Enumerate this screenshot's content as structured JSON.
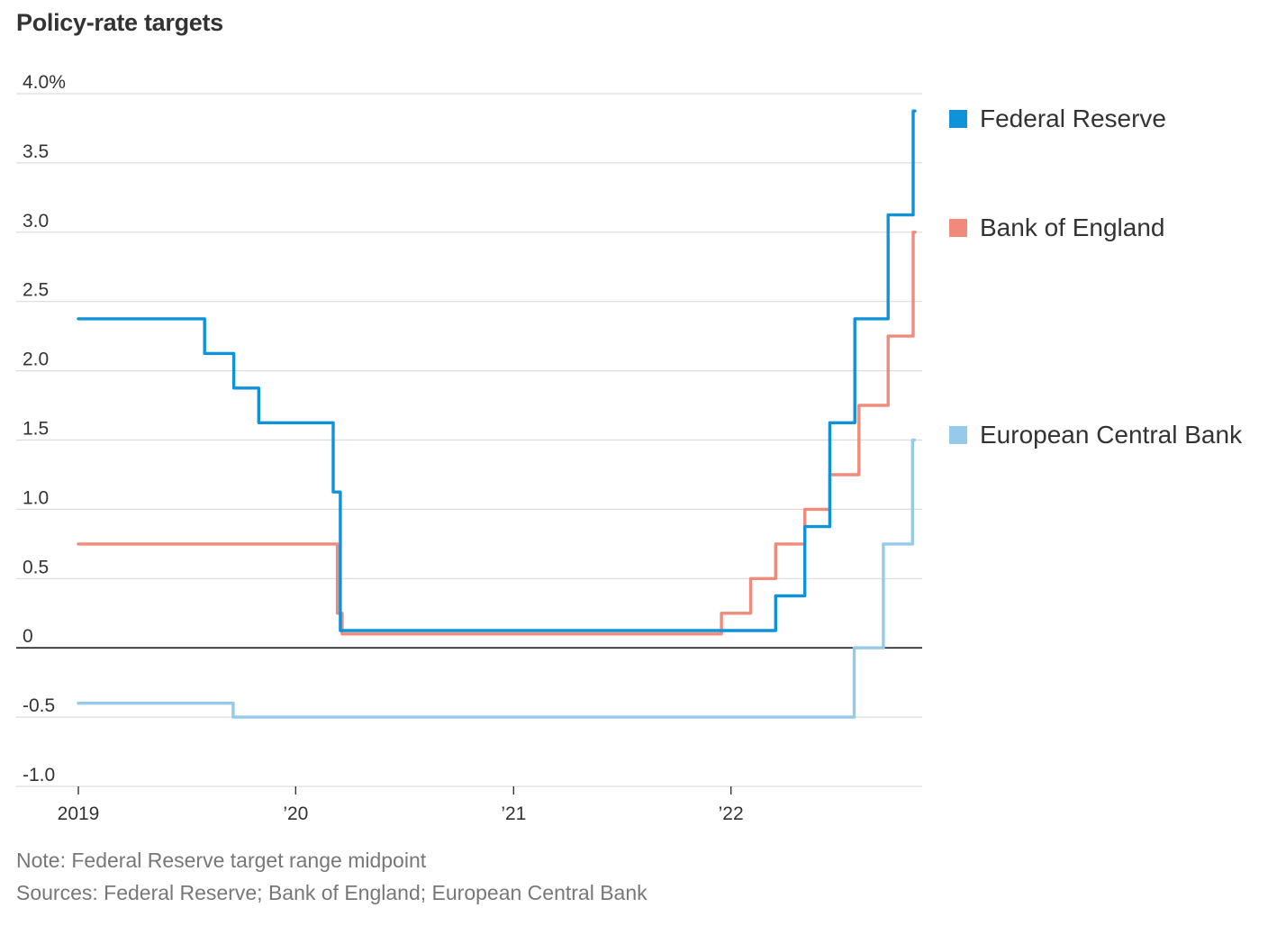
{
  "chart_data": {
    "type": "line",
    "title": "Policy-rate targets",
    "xlabel": "",
    "ylabel": "",
    "ylim": [
      -1.0,
      4.0
    ],
    "yticks": [
      {
        "value": 4.0,
        "label": "4.0%"
      },
      {
        "value": 3.5,
        "label": "3.5"
      },
      {
        "value": 3.0,
        "label": "3.0"
      },
      {
        "value": 2.5,
        "label": "2.5"
      },
      {
        "value": 2.0,
        "label": "2.0"
      },
      {
        "value": 1.5,
        "label": "1.5"
      },
      {
        "value": 1.0,
        "label": "1.0"
      },
      {
        "value": 0.5,
        "label": "0.5"
      },
      {
        "value": 0,
        "label": "0"
      },
      {
        "value": -0.5,
        "label": "-0.5"
      },
      {
        "value": -1.0,
        "label": "-1.0"
      }
    ],
    "xlim": [
      "2019-01-01",
      "2022-11-20"
    ],
    "xticks": [
      {
        "value": "2019-01-01",
        "label": "2019"
      },
      {
        "value": "2020-01-01",
        "label": "’20"
      },
      {
        "value": "2021-01-01",
        "label": "’21"
      },
      {
        "value": "2022-01-01",
        "label": "’22"
      }
    ],
    "grid": true,
    "legend_position": "right",
    "step": true,
    "series": [
      {
        "name": "Federal Reserve",
        "color": "#0f92d8",
        "points": [
          [
            "2019-01-01",
            2.375
          ],
          [
            "2019-08-01",
            2.125
          ],
          [
            "2019-09-19",
            1.875
          ],
          [
            "2019-10-31",
            1.625
          ],
          [
            "2020-03-04",
            1.125
          ],
          [
            "2020-03-16",
            0.125
          ],
          [
            "2022-03-17",
            0.375
          ],
          [
            "2022-05-05",
            0.875
          ],
          [
            "2022-06-16",
            1.625
          ],
          [
            "2022-07-28",
            2.375
          ],
          [
            "2022-09-22",
            3.125
          ],
          [
            "2022-11-03",
            3.875
          ]
        ]
      },
      {
        "name": "Bank of England",
        "color": "#f08a7b",
        "points": [
          [
            "2019-01-01",
            0.75
          ],
          [
            "2020-03-11",
            0.25
          ],
          [
            "2020-03-19",
            0.1
          ],
          [
            "2021-12-16",
            0.25
          ],
          [
            "2022-02-03",
            0.5
          ],
          [
            "2022-03-17",
            0.75
          ],
          [
            "2022-05-05",
            1.0
          ],
          [
            "2022-06-16",
            1.25
          ],
          [
            "2022-08-04",
            1.75
          ],
          [
            "2022-09-22",
            2.25
          ],
          [
            "2022-11-03",
            3.0
          ]
        ]
      },
      {
        "name": "European Central Bank",
        "color": "#96caeb",
        "points": [
          [
            "2019-01-01",
            -0.4
          ],
          [
            "2019-09-18",
            -0.5
          ],
          [
            "2022-07-27",
            0.0
          ],
          [
            "2022-09-14",
            0.75
          ],
          [
            "2022-11-02",
            1.5
          ]
        ]
      }
    ],
    "notes": [
      "Note: Federal Reserve target range midpoint",
      "Sources: Federal Reserve; Bank of England; European Central Bank"
    ]
  }
}
